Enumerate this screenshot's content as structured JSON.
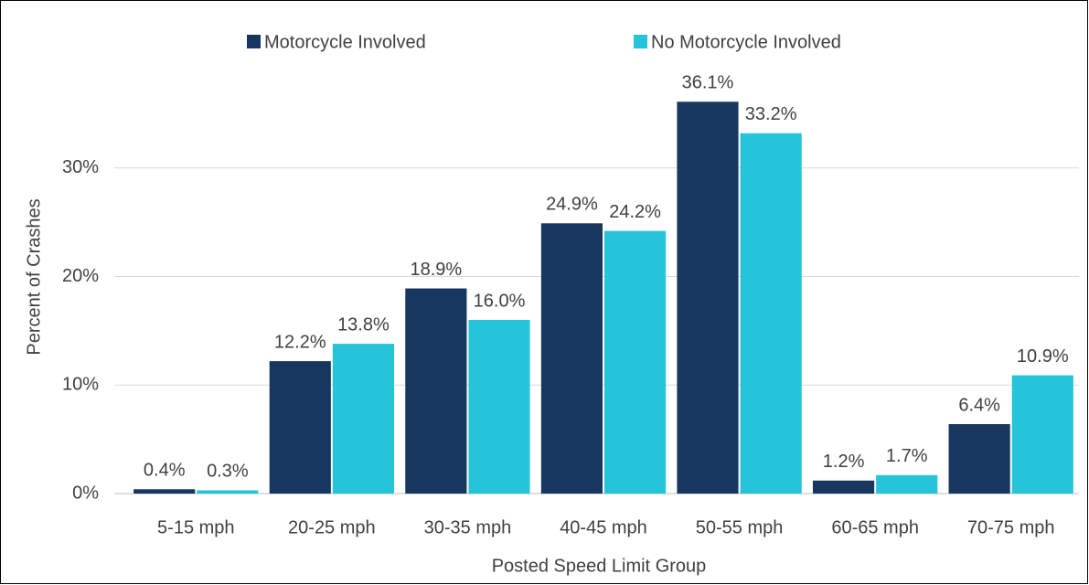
{
  "chart_data": {
    "type": "bar",
    "categories": [
      "5-15 mph",
      "20-25 mph",
      "30-35 mph",
      "40-45 mph",
      "50-55 mph",
      "60-65 mph",
      "70-75 mph"
    ],
    "series": [
      {
        "name": "Motorcycle Involved",
        "color": "#17375e",
        "values": [
          0.4,
          12.2,
          18.9,
          24.9,
          36.1,
          1.2,
          6.4
        ],
        "value_labels": [
          "0.4%",
          "12.2%",
          "18.9%",
          "24.9%",
          "36.1%",
          "1.2%",
          "6.4%"
        ]
      },
      {
        "name": "No Motorcycle Involved",
        "color": "#26c4d9",
        "values": [
          0.3,
          13.8,
          16.0,
          24.2,
          33.2,
          1.7,
          10.9
        ],
        "value_labels": [
          "0.3%",
          "13.8%",
          "16.0%",
          "24.2%",
          "33.2%",
          "1.7%",
          "10.9%"
        ]
      }
    ],
    "xlabel": "Posted Speed Limit Group",
    "ylabel": "Percent of Crashes",
    "ylim": [
      0,
      40
    ],
    "yticks": [
      {
        "value": 0,
        "label": "0%"
      },
      {
        "value": 10,
        "label": "10%"
      },
      {
        "value": 20,
        "label": "20%"
      },
      {
        "value": 30,
        "label": "30%"
      }
    ],
    "grid": true,
    "legend": "top"
  }
}
